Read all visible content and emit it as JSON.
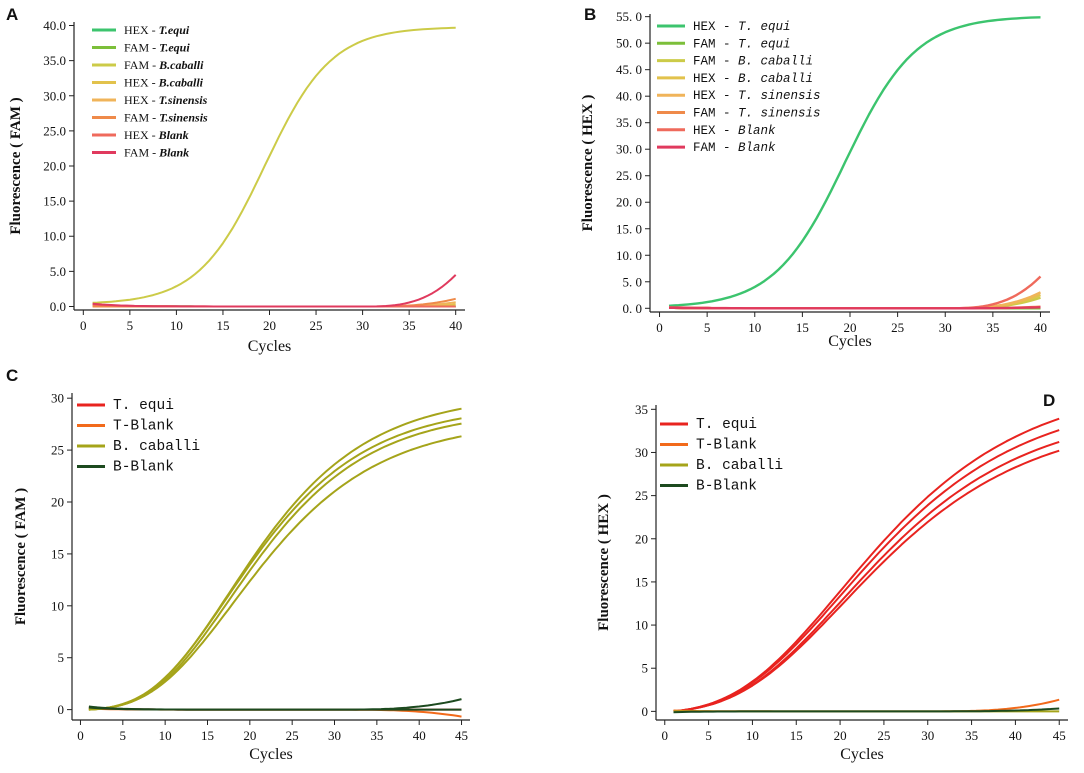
{
  "chart_data": [
    {
      "panel": "A",
      "type": "line",
      "title": "",
      "xlabel": "Cycles",
      "ylabel": "Fluorescence ( FAM )",
      "xlim": [
        -1,
        41
      ],
      "ylim": [
        -0.5,
        40.5
      ],
      "xticks": [
        0,
        5,
        10,
        15,
        20,
        25,
        30,
        35,
        40
      ],
      "yticks": [
        0.0,
        5.0,
        10.0,
        15.0,
        20.0,
        25.0,
        30.0,
        35.0,
        40.0
      ],
      "ytick_decimals": 1,
      "legend_position": "top-left",
      "legend_style": "normal",
      "series": [
        {
          "name": "HEX - T.equi",
          "prefix": "HEX - ",
          "species": "T.equi",
          "color": "#3cc46e",
          "kind": "flat",
          "params": [
            0.2,
            0.0,
            0.0
          ]
        },
        {
          "name": "FAM - T.equi",
          "prefix": "FAM - ",
          "species": "T.equi",
          "color": "#7cbf3a",
          "kind": "flat",
          "params": [
            0.2,
            0.0,
            0.0
          ]
        },
        {
          "name": "FAM - B.caballi",
          "prefix": "FAM - ",
          "species": "B.caballi",
          "color": "#cccb48",
          "kind": "sigmoid",
          "params": [
            0.3,
            39.5,
            19.5,
            0.28
          ]
        },
        {
          "name": "HEX - B.caballi",
          "prefix": "HEX - ",
          "species": "B.caballi",
          "color": "#e2c24c",
          "kind": "flat",
          "params": [
            0.1,
            0.3,
            0.0
          ]
        },
        {
          "name": "HEX - T.sinensis",
          "prefix": "HEX - ",
          "species": "T.sinensis",
          "color": "#f0b45a",
          "kind": "flat",
          "params": [
            0.1,
            0.6,
            0.0
          ]
        },
        {
          "name": "FAM - T.sinensis",
          "prefix": "FAM - ",
          "species": "T.sinensis",
          "color": "#ef8a4a",
          "kind": "flat",
          "params": [
            0.0,
            1.1,
            0.0
          ]
        },
        {
          "name": "HEX - Blank",
          "prefix": "HEX - ",
          "species": "Blank",
          "color": "#ef6a5c",
          "kind": "flat",
          "params": [
            0.3,
            0.0,
            0.0
          ]
        },
        {
          "name": "FAM - Blank",
          "prefix": "FAM - ",
          "species": "Blank",
          "color": "#e03a5e",
          "kind": "flat",
          "params": [
            0.4,
            4.5,
            0.0
          ]
        }
      ]
    },
    {
      "panel": "B",
      "type": "line",
      "title": "",
      "xlabel": "Cycles",
      "ylabel": "Fluorescence ( HEX )",
      "xlim": [
        -1,
        41
      ],
      "ylim": [
        -0.7,
        55.5
      ],
      "xticks": [
        0,
        5,
        10,
        15,
        20,
        25,
        30,
        35,
        40
      ],
      "yticks": [
        0.0,
        5.0,
        10.0,
        15.0,
        20.0,
        25.0,
        30.0,
        35.0,
        40.0,
        45.0,
        50.0,
        55.0
      ],
      "ytick_decimals": 1,
      "ytick_format": "spaced",
      "legend_position": "top-left",
      "legend_style": "mono",
      "series": [
        {
          "name": "HEX - T. equi",
          "prefix": "HEX - ",
          "species": "T. equi",
          "color": "#3cc46e",
          "kind": "sigmoid",
          "params": [
            0.1,
            55.0,
            19.5,
            0.27
          ]
        },
        {
          "name": "FAM - T. equi",
          "prefix": "FAM - ",
          "species": "T. equi",
          "color": "#7cbf3a",
          "kind": "flat",
          "params": [
            0.1,
            0.0,
            0.0
          ]
        },
        {
          "name": "FAM - B. caballi",
          "prefix": "FAM - ",
          "species": "B. caballi",
          "color": "#cccb48",
          "kind": "flat",
          "params": [
            0.1,
            2.0,
            0.0
          ]
        },
        {
          "name": "HEX - B. caballi",
          "prefix": "HEX - ",
          "species": "B. caballi",
          "color": "#e2c24c",
          "kind": "flat",
          "params": [
            0.1,
            2.5,
            0.0
          ]
        },
        {
          "name": "HEX - T. sinensis",
          "prefix": "HEX - ",
          "species": "T. sinensis",
          "color": "#f0b45a",
          "kind": "flat",
          "params": [
            0.1,
            3.0,
            0.0
          ]
        },
        {
          "name": "FAM - T. sinensis",
          "prefix": "FAM - ",
          "species": "T. sinensis",
          "color": "#ef8a4a",
          "kind": "flat",
          "params": [
            0.1,
            0.3,
            0.0
          ]
        },
        {
          "name": "HEX - Blank",
          "prefix": "HEX - ",
          "species": "Blank",
          "color": "#ef6a5c",
          "kind": "flat",
          "params": [
            0.2,
            6.0,
            0.0
          ]
        },
        {
          "name": "FAM - Blank",
          "prefix": "FAM - ",
          "species": "Blank",
          "color": "#e03a5e",
          "kind": "flat",
          "params": [
            0.1,
            0.2,
            0.0
          ]
        }
      ]
    },
    {
      "panel": "C",
      "type": "line",
      "title": "",
      "xlabel": "Cycles",
      "ylabel": "Fluorescence ( FAM )",
      "xlim": [
        -1,
        46
      ],
      "ylim": [
        -1,
        30.5
      ],
      "xticks": [
        0,
        5,
        10,
        15,
        20,
        25,
        30,
        35,
        40,
        45
      ],
      "yticks": [
        0,
        5,
        10,
        15,
        20,
        25,
        30
      ],
      "ytick_decimals": 0,
      "legend_position": "top-left",
      "legend_style": "big",
      "series": [
        {
          "name": "T. equi",
          "color": "#e8231f",
          "kind": "flat",
          "replicates": [
            [
              0.2,
              0.0,
              0.0
            ]
          ]
        },
        {
          "name": "T-Blank",
          "color": "#f26a1b",
          "kind": "flat",
          "replicates": [
            [
              0.1,
              -0.2,
              0.0
            ]
          ]
        },
        {
          "name": "B. caballi",
          "color": "#a5a41a",
          "kind": "gompertz",
          "replicates": [
            [
              0.0,
              30.5,
              17.5,
              0.11
            ],
            [
              0.0,
              29.5,
              17.3,
              0.11
            ],
            [
              0.0,
              29.0,
              17.6,
              0.11
            ],
            [
              0.0,
              28.0,
              18.0,
              0.105
            ]
          ]
        },
        {
          "name": "B-Blank",
          "color": "#1d4a1f",
          "kind": "flat",
          "replicates": [
            [
              0.3,
              0.3,
              0.0
            ],
            [
              0.2,
              0.0,
              0.0
            ]
          ]
        }
      ]
    },
    {
      "panel": "D",
      "type": "line",
      "title": "",
      "xlabel": "Cycles",
      "ylabel": "Fluorescence ( HEX )",
      "xlim": [
        -1,
        46
      ],
      "ylim": [
        -1,
        35.5
      ],
      "xticks": [
        0,
        5,
        10,
        15,
        20,
        25,
        30,
        35,
        40,
        45
      ],
      "yticks": [
        0,
        5,
        10,
        15,
        20,
        25,
        30,
        35
      ],
      "ytick_decimals": 0,
      "legend_position": "top-left",
      "legend_style": "big",
      "series": [
        {
          "name": "T. equi",
          "color": "#e8231f",
          "kind": "gompertz",
          "replicates": [
            [
              0.0,
              38.5,
              20.0,
              0.085
            ],
            [
              0.0,
              37.0,
              20.0,
              0.085
            ],
            [
              0.0,
              35.5,
              20.2,
              0.085
            ],
            [
              0.0,
              34.5,
              20.3,
              0.084
            ]
          ]
        },
        {
          "name": "T-Blank",
          "color": "#f26a1b",
          "kind": "flat",
          "replicates": [
            [
              0.1,
              0.4,
              0.0
            ]
          ]
        },
        {
          "name": "B. caballi",
          "color": "#a5a41a",
          "kind": "flat",
          "replicates": [
            [
              0.0,
              0.0,
              0.0
            ]
          ]
        },
        {
          "name": "B-Blank",
          "color": "#1d4a1f",
          "kind": "flat",
          "replicates": [
            [
              -0.1,
              0.1,
              0.0
            ]
          ]
        }
      ]
    }
  ]
}
